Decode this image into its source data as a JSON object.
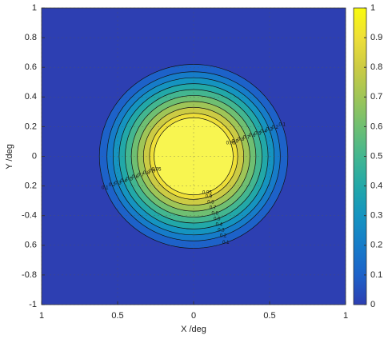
{
  "chart_data": {
    "type": "contour",
    "xlabel": "X /deg",
    "ylabel": "Y /deg",
    "xlim": [
      -1,
      1
    ],
    "ylim": [
      -1,
      1
    ],
    "xticks": [
      {
        "value": -1,
        "label": "1"
      },
      {
        "value": -0.5,
        "label": "0.5"
      },
      0,
      0.5,
      1
    ],
    "yticks": [
      1,
      0.8,
      0.6,
      0.4,
      0.2,
      0,
      {
        "value": -0.2,
        "label": "0.2"
      },
      -0.4,
      {
        "value": -0.6,
        "label": "0.6"
      },
      -0.8,
      -1
    ],
    "grid": true,
    "background_color": "#2d3fb2",
    "contours": [
      {
        "level": 0.1,
        "radius": 0.62,
        "color": "#1d62c9"
      },
      {
        "level": 0.2,
        "radius": 0.57,
        "color": "#167cc9"
      },
      {
        "level": 0.3,
        "radius": 0.53,
        "color": "#1594c0"
      },
      {
        "level": 0.4,
        "radius": 0.49,
        "color": "#22a8a8"
      },
      {
        "level": 0.5,
        "radius": 0.45,
        "color": "#43b690"
      },
      {
        "level": 0.6,
        "radius": 0.41,
        "color": "#6fbf72"
      },
      {
        "level": 0.7,
        "radius": 0.37,
        "color": "#9fc557"
      },
      {
        "level": 0.8,
        "radius": 0.33,
        "color": "#cccb44"
      },
      {
        "level": 0.9,
        "radius": 0.29,
        "color": "#eedf38"
      },
      {
        "level": 0.95,
        "radius": 0.26,
        "color": "#f8f550"
      }
    ],
    "colorbar": {
      "lim": [
        0,
        1
      ],
      "ticks": [
        0,
        0.1,
        0.2,
        0.3,
        0.4,
        0.5,
        0.6,
        0.7,
        0.8,
        0.9,
        1
      ],
      "colormap": [
        "#2d3fb2",
        "#1d62c9",
        "#167cc9",
        "#1594c0",
        "#22a8a8",
        "#43b690",
        "#6fbf72",
        "#9fc557",
        "#cccb44",
        "#eedf38",
        "#f9fb0e"
      ]
    }
  }
}
